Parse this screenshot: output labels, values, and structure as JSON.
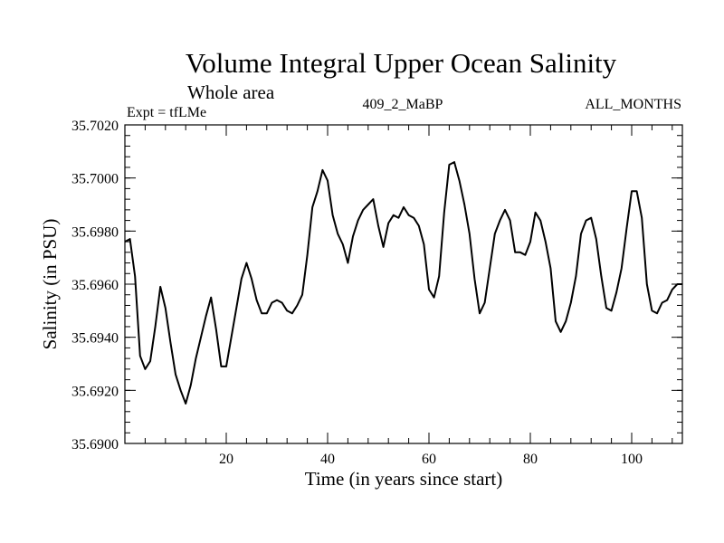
{
  "chart_data": {
    "type": "line",
    "title": "Volume Integral Upper Ocean Salinity",
    "subtitle": "Whole area",
    "experiment_label": "Expt = tfLMe",
    "run_label": "409_2_MaBP",
    "period_label": "ALL_MONTHS",
    "xlabel": "Time (in years since start)",
    "ylabel": "Salinity (in PSU)",
    "xlim": [
      0,
      110
    ],
    "ylim": [
      35.69,
      35.702
    ],
    "x_ticks": [
      20,
      40,
      60,
      80,
      100
    ],
    "x_tick_labels": [
      "20",
      "40",
      "60",
      "80",
      "100"
    ],
    "y_ticks": [
      35.69,
      35.692,
      35.694,
      35.696,
      35.698,
      35.7,
      35.702
    ],
    "y_tick_labels": [
      "35.6900",
      "35.6920",
      "35.6940",
      "35.6960",
      "35.6980",
      "35.7000",
      "35.7020"
    ],
    "grid": false,
    "series": [
      {
        "name": "Salinity",
        "color": "#000000",
        "x": [
          0,
          1,
          2,
          3,
          4,
          5,
          6,
          7,
          8,
          9,
          10,
          11,
          12,
          13,
          14,
          15,
          16,
          17,
          18,
          19,
          20,
          21,
          22,
          23,
          24,
          25,
          26,
          27,
          28,
          29,
          30,
          31,
          32,
          33,
          34,
          35,
          36,
          37,
          38,
          39,
          40,
          41,
          42,
          43,
          44,
          45,
          46,
          47,
          48,
          49,
          50,
          51,
          52,
          53,
          54,
          55,
          56,
          57,
          58,
          59,
          60,
          61,
          62,
          63,
          64,
          65,
          66,
          67,
          68,
          69,
          70,
          71,
          72,
          73,
          74,
          75,
          76,
          77,
          78,
          79,
          80,
          81,
          82,
          83,
          84,
          85,
          86,
          87,
          88,
          89,
          90,
          91,
          92,
          93,
          94,
          95,
          96,
          97,
          98,
          99,
          100,
          101,
          102,
          103,
          104,
          105,
          106,
          107,
          108,
          109,
          110
        ],
        "values": [
          35.6976,
          35.6977,
          35.6963,
          35.6933,
          35.6928,
          35.6931,
          35.6944,
          35.6959,
          35.6951,
          35.6938,
          35.6926,
          35.692,
          35.6915,
          35.6922,
          35.6932,
          35.694,
          35.6948,
          35.6955,
          35.6943,
          35.6929,
          35.6929,
          35.694,
          35.6951,
          35.6962,
          35.6968,
          35.6962,
          35.6954,
          35.6949,
          35.6949,
          35.6953,
          35.6954,
          35.6953,
          35.695,
          35.6949,
          35.6952,
          35.6956,
          35.6971,
          35.6989,
          35.6995,
          35.7003,
          35.6999,
          35.6986,
          35.6979,
          35.6975,
          35.6968,
          35.6978,
          35.6984,
          35.6988,
          35.699,
          35.6992,
          35.6982,
          35.6974,
          35.6983,
          35.6986,
          35.6985,
          35.6989,
          35.6986,
          35.6985,
          35.6982,
          35.6975,
          35.6958,
          35.6955,
          35.6963,
          35.6987,
          35.7005,
          35.7006,
          35.6999,
          35.699,
          35.6979,
          35.6962,
          35.6949,
          35.6953,
          35.6966,
          35.6979,
          35.6984,
          35.6988,
          35.6984,
          35.6972,
          35.6972,
          35.6971,
          35.6976,
          35.6987,
          35.6984,
          35.6976,
          35.6966,
          35.6946,
          35.6942,
          35.6946,
          35.6953,
          35.6963,
          35.6979,
          35.6984,
          35.6985,
          35.6977,
          35.6963,
          35.6951,
          35.695,
          35.6957,
          35.6966,
          35.6981,
          35.6995,
          35.6995,
          35.6985,
          35.696,
          35.695,
          35.6949,
          35.6953,
          35.6954,
          35.6958,
          35.696,
          35.696
        ]
      }
    ]
  }
}
